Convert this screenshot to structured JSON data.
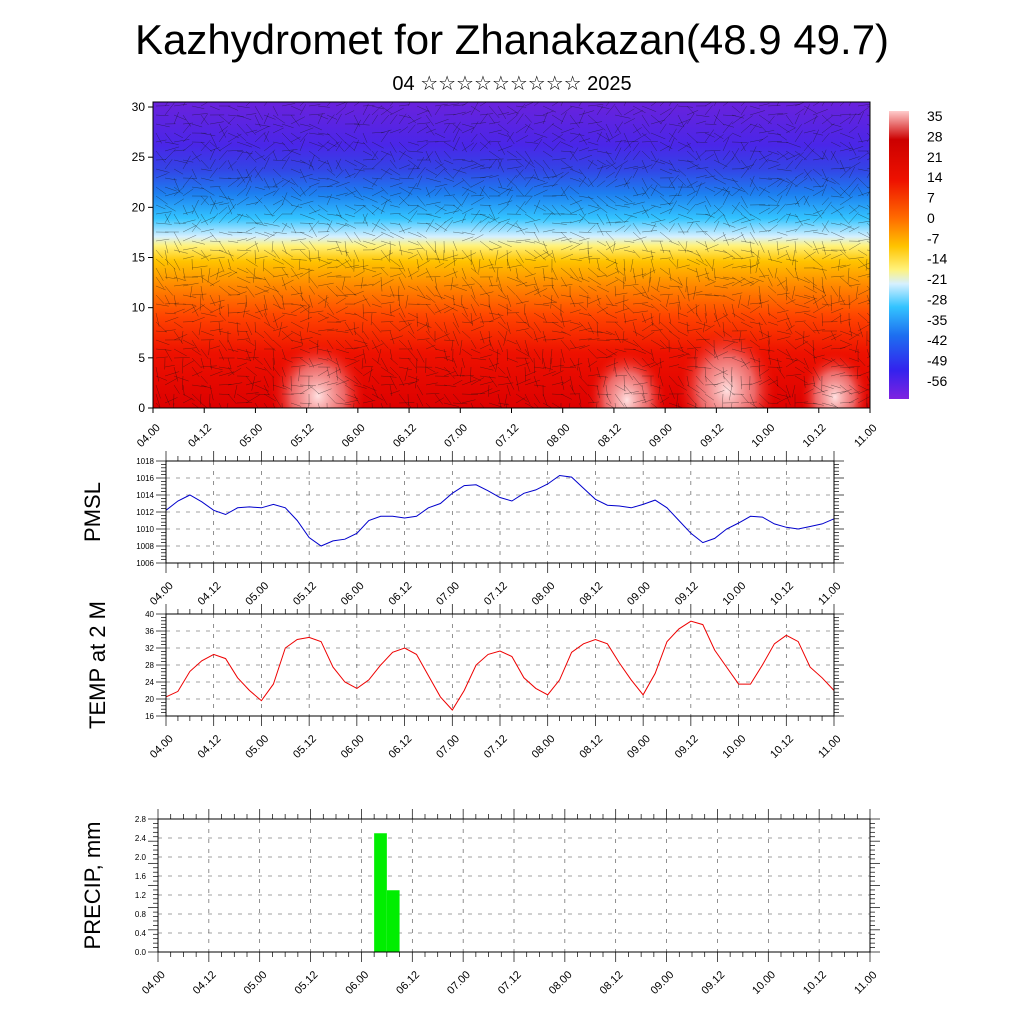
{
  "title": "Kazhydromet for Zhanakazan(48.9 49.7)",
  "subtitle": "04 ☆☆☆☆☆☆☆☆☆ 2025",
  "chart_data": [
    {
      "type": "heatmap",
      "name": "vertical temperature and wind cross-section",
      "x_ticks": [
        "04.00",
        "04.12",
        "05.00",
        "05.12",
        "06.00",
        "06.12",
        "07.00",
        "07.12",
        "08.00",
        "08.12",
        "09.00",
        "09.12",
        "10.00",
        "10.12",
        "11.00"
      ],
      "y_ticks": [
        0,
        5,
        10,
        15,
        20,
        25,
        30
      ],
      "ylim": [
        0,
        30.5
      ],
      "colorbar_labels": [
        35,
        28,
        21,
        14,
        7,
        0,
        -7,
        -14,
        -21,
        -28,
        -35,
        -42,
        -49,
        -56
      ],
      "colors": {
        "warm": "#ee1100",
        "hot": "#ffcccc",
        "cold": "#5522ee",
        "mid": "#ffee66",
        "cyan": "#33ccff"
      },
      "grid": false
    },
    {
      "type": "line",
      "ylabel": "PMSL",
      "x_ticks": [
        "04.00",
        "04.12",
        "05.00",
        "05.12",
        "06.00",
        "06.12",
        "07.00",
        "07.12",
        "08.00",
        "08.12",
        "09.00",
        "09.12",
        "10.00",
        "10.12",
        "11.00"
      ],
      "y_ticks": [
        1006,
        1008,
        1010,
        1012,
        1014,
        1016,
        1018
      ],
      "ylim": [
        1006,
        1018
      ],
      "x": [
        0,
        3,
        6,
        9,
        12,
        15,
        18,
        21,
        24,
        27,
        30,
        33,
        36,
        39,
        42,
        45,
        48,
        51,
        54,
        57,
        60,
        63,
        66,
        69,
        72,
        75,
        78,
        81,
        84,
        87,
        90,
        93,
        96,
        99,
        102,
        105,
        108,
        111,
        114,
        117,
        120,
        123,
        126,
        129,
        132,
        135,
        138,
        141,
        144,
        147,
        150,
        153,
        156,
        159,
        162,
        165,
        168
      ],
      "values": [
        1012.2,
        1013.3,
        1014.0,
        1013.2,
        1012.2,
        1011.7,
        1012.5,
        1012.6,
        1012.5,
        1012.9,
        1012.5,
        1011.0,
        1009.0,
        1008.0,
        1008.6,
        1008.8,
        1009.5,
        1011.0,
        1011.5,
        1011.5,
        1011.3,
        1011.5,
        1012.5,
        1013.0,
        1014.2,
        1015.1,
        1015.2,
        1014.5,
        1013.7,
        1013.3,
        1014.2,
        1014.6,
        1015.3,
        1016.3,
        1016.1,
        1014.8,
        1013.5,
        1012.8,
        1012.7,
        1012.5,
        1012.9,
        1013.4,
        1012.5,
        1011.0,
        1009.5,
        1008.4,
        1008.9,
        1010.0,
        1010.7,
        1011.5,
        1011.4,
        1010.6,
        1010.2,
        1010.0,
        1010.3,
        1010.6,
        1011.2
      ],
      "color": "#0000cc",
      "grid": true
    },
    {
      "type": "line",
      "ylabel": "TEMP at 2 M",
      "x_ticks": [
        "04.00",
        "04.12",
        "05.00",
        "05.12",
        "06.00",
        "06.12",
        "07.00",
        "07.12",
        "08.00",
        "08.12",
        "09.00",
        "09.12",
        "10.00",
        "10.12",
        "11.00"
      ],
      "y_ticks": [
        16,
        20,
        24,
        28,
        32,
        36,
        40
      ],
      "ylim": [
        16,
        40
      ],
      "x": [
        0,
        3,
        6,
        9,
        12,
        15,
        18,
        21,
        24,
        27,
        30,
        33,
        36,
        39,
        42,
        45,
        48,
        51,
        54,
        57,
        60,
        63,
        66,
        69,
        72,
        75,
        78,
        81,
        84,
        87,
        90,
        93,
        96,
        99,
        102,
        105,
        108,
        111,
        114,
        117,
        120,
        123,
        126,
        129,
        132,
        135,
        138,
        141,
        144,
        147,
        150,
        153,
        156,
        159,
        162,
        165,
        168
      ],
      "values": [
        20.5,
        21.8,
        26.5,
        29.0,
        30.5,
        29.5,
        25.0,
        22.0,
        19.6,
        23.5,
        32.0,
        34.0,
        34.5,
        33.5,
        27.5,
        24.0,
        22.5,
        24.5,
        28.0,
        31.0,
        32.0,
        30.5,
        25.5,
        20.5,
        17.4,
        22.0,
        28.0,
        30.5,
        31.3,
        30.0,
        25.0,
        22.5,
        21.0,
        24.5,
        31.0,
        33.0,
        34.0,
        33.0,
        28.5,
        24.5,
        21.0,
        26.0,
        33.5,
        36.5,
        38.3,
        37.5,
        31.5,
        27.5,
        23.5,
        23.5,
        28.0,
        33.0,
        35.0,
        33.5,
        27.5,
        25.0,
        22.0
      ],
      "color": "#ee0000",
      "grid": true
    },
    {
      "type": "bar",
      "ylabel": "PRECIP, mm",
      "x_ticks": [
        "04.00",
        "04.12",
        "05.00",
        "05.12",
        "06.00",
        "06.12",
        "07.00",
        "07.12",
        "08.00",
        "08.12",
        "09.00",
        "09.12",
        "10.00",
        "10.12",
        "11.00"
      ],
      "y_ticks": [
        "0.0",
        "0.4",
        "0.8",
        "1.2",
        "1.6",
        "2.0",
        "2.4",
        "2.8"
      ],
      "ylim": [
        0,
        2.8
      ],
      "bars": [
        {
          "x_start": 51,
          "x_end": 54,
          "value": 2.5
        },
        {
          "x_start": 54,
          "x_end": 57,
          "value": 1.3
        }
      ],
      "color": "#00ee00",
      "grid": true
    }
  ]
}
